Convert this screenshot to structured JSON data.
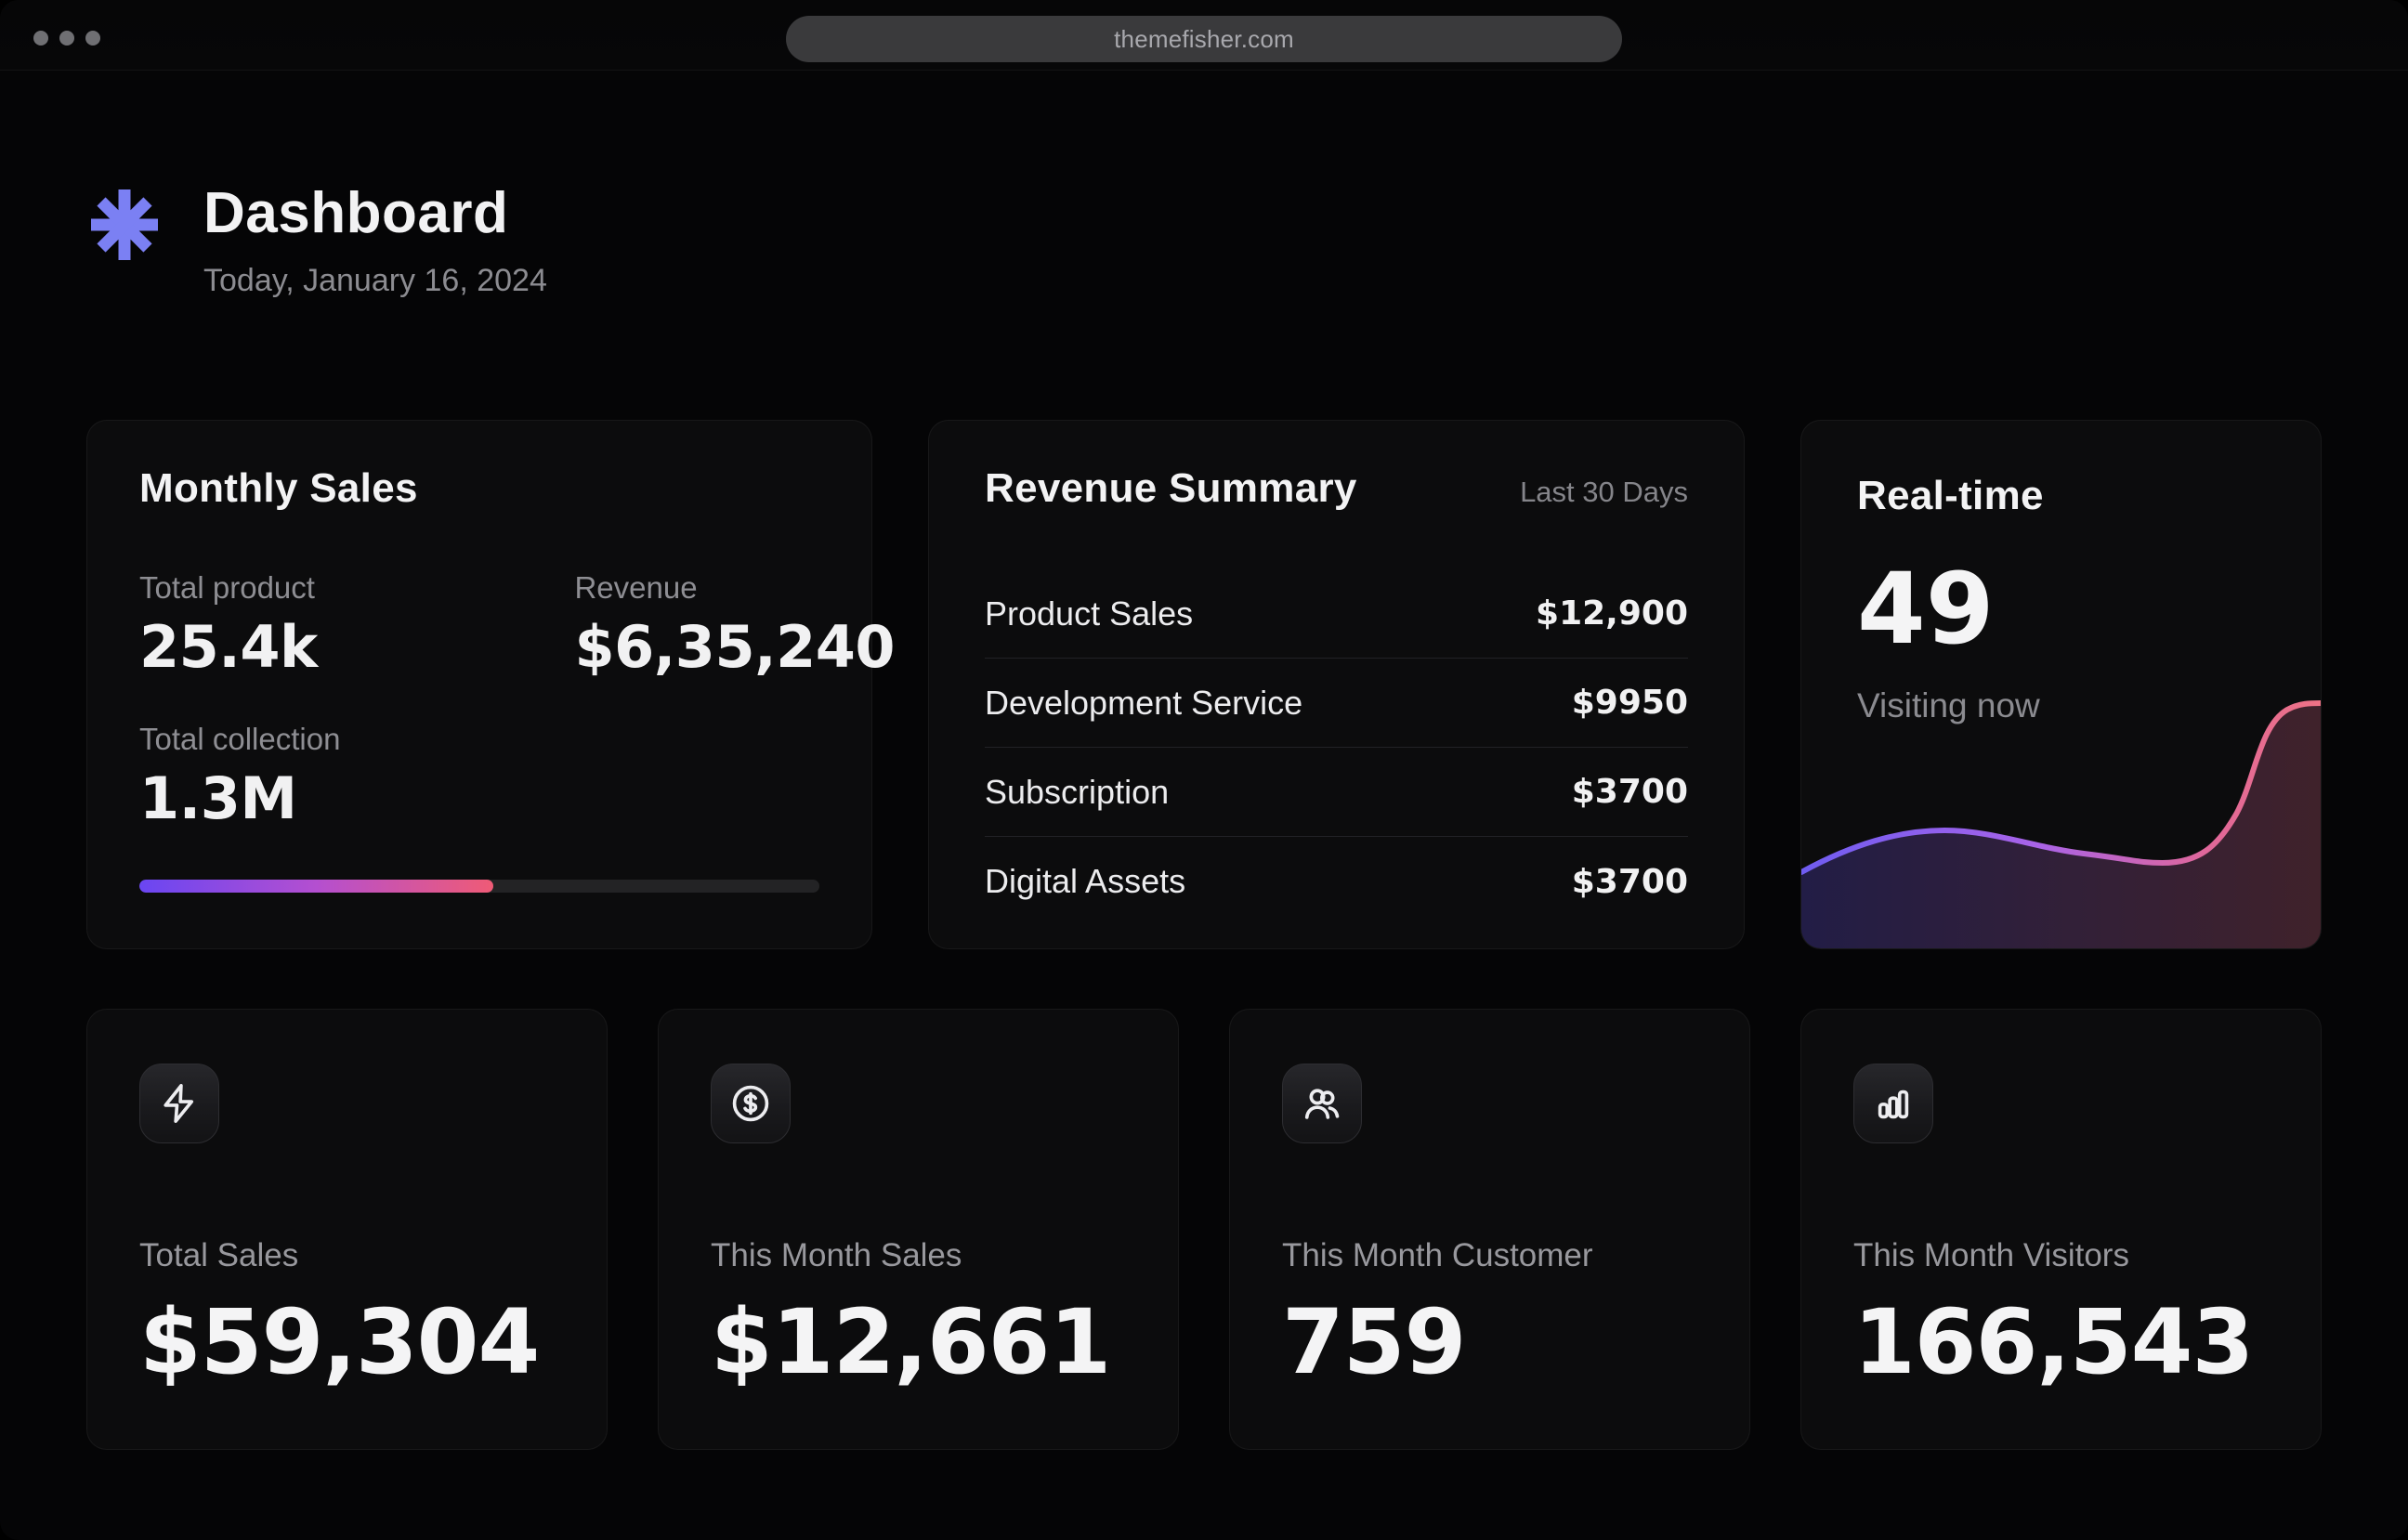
{
  "browser": {
    "url": "themefisher.com"
  },
  "header": {
    "title": "Dashboard",
    "date": "Today, January 16, 2024"
  },
  "monthly_sales": {
    "title": "Monthly Sales",
    "metrics": [
      {
        "label": "Total product",
        "value": "25.4k"
      },
      {
        "label": "Revenue",
        "value": "$6,35,240"
      },
      {
        "label": "Total collection",
        "value": "1.3M"
      }
    ],
    "progress_percent": 52
  },
  "revenue_summary": {
    "title": "Revenue Summary",
    "period": "Last 30 Days",
    "rows": [
      {
        "label": "Product Sales",
        "value": "$12,900"
      },
      {
        "label": "Development Service",
        "value": "$9950"
      },
      {
        "label": "Subscription",
        "value": "$3700"
      },
      {
        "label": "Digital Assets",
        "value": "$3700"
      }
    ]
  },
  "realtime": {
    "title": "Real-time",
    "value": "49",
    "caption": "Visiting now"
  },
  "stats": [
    {
      "icon": "lightning-icon",
      "label": "Total Sales",
      "value": "$59,304"
    },
    {
      "icon": "dollar-circle-icon",
      "label": "This Month Sales",
      "value": "$12,661"
    },
    {
      "icon": "users-icon",
      "label": "This Month Customer",
      "value": "759"
    },
    {
      "icon": "bar-chart-icon",
      "label": "This Month Visitors",
      "value": "166,543"
    }
  ],
  "colors": {
    "logo_accent": "#7b80f3",
    "progress_gradient": [
      "#6a46f2",
      "#b44fd0",
      "#ef5b76"
    ],
    "chart_line_gradient": [
      "#6f5cf1",
      "#a863e8",
      "#e0679a",
      "#ee7285"
    ],
    "chart_fill_gradient": [
      "#262050",
      "#382340",
      "#45242e"
    ]
  },
  "chart_data": {
    "type": "area",
    "title": "Real-time visitors sparkline (no axes shown)",
    "x": [
      0,
      1,
      2,
      3,
      4,
      5,
      6,
      7,
      8,
      9,
      10
    ],
    "values": [
      27,
      38,
      42,
      40,
      35,
      33,
      31,
      30,
      45,
      86,
      86
    ],
    "ylim": [
      0,
      100
    ],
    "grid": false,
    "legend": false,
    "note": "relative curve heights estimated from pixels; peak at right edge"
  }
}
